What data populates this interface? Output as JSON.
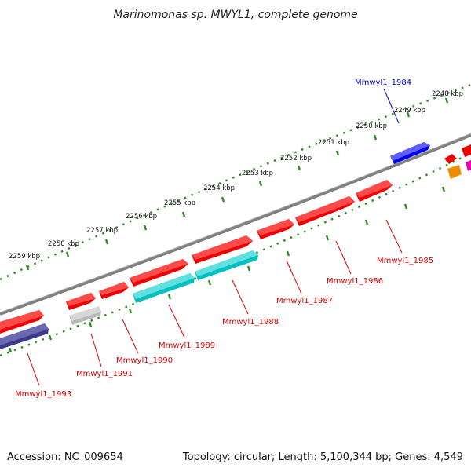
{
  "title": "Marinomonas sp. MWYL1, complete genome",
  "footer": {
    "accession": "Accession: NC_009654",
    "summary": "Topology: circular; Length: 5,100,344 bp; Genes: 4,549"
  },
  "colors": {
    "backbone": "#808080",
    "tick_dots": "#2e8b22",
    "reverse_label": "#0000cc",
    "forward_label": "#dd0000",
    "red_gene": "#ee0000",
    "cyan_gene": "#00c0c0",
    "grey_gene": "#b8b8b8",
    "navy_gene": "#3c3a8a",
    "blue_gene": "#0000ee",
    "orange_gene": "#f08c00",
    "magenta_gene": "#ee00aa"
  },
  "scale_labels": [
    "2248 kbp",
    "2249 kbp",
    "2250 kbp",
    "2251 kbp",
    "2252 kbp",
    "2253 kbp",
    "2254 kbp",
    "2255 kbp",
    "2256 kbp",
    "2257 kbp",
    "2258 kbp",
    "2259 kbp"
  ],
  "gene_labels": {
    "g1984": "Mmwyl1_1984",
    "g1985": "Mmwyl1_1985",
    "g1986": "Mmwyl1_1986",
    "g1987": "Mmwyl1_1987",
    "g1988": "Mmwyl1_1988",
    "g1989": "Mmwyl1_1989",
    "g1990": "Mmwyl1_1990",
    "g1991": "Mmwyl1_1991",
    "g1993": "Mmwyl1_1993"
  }
}
